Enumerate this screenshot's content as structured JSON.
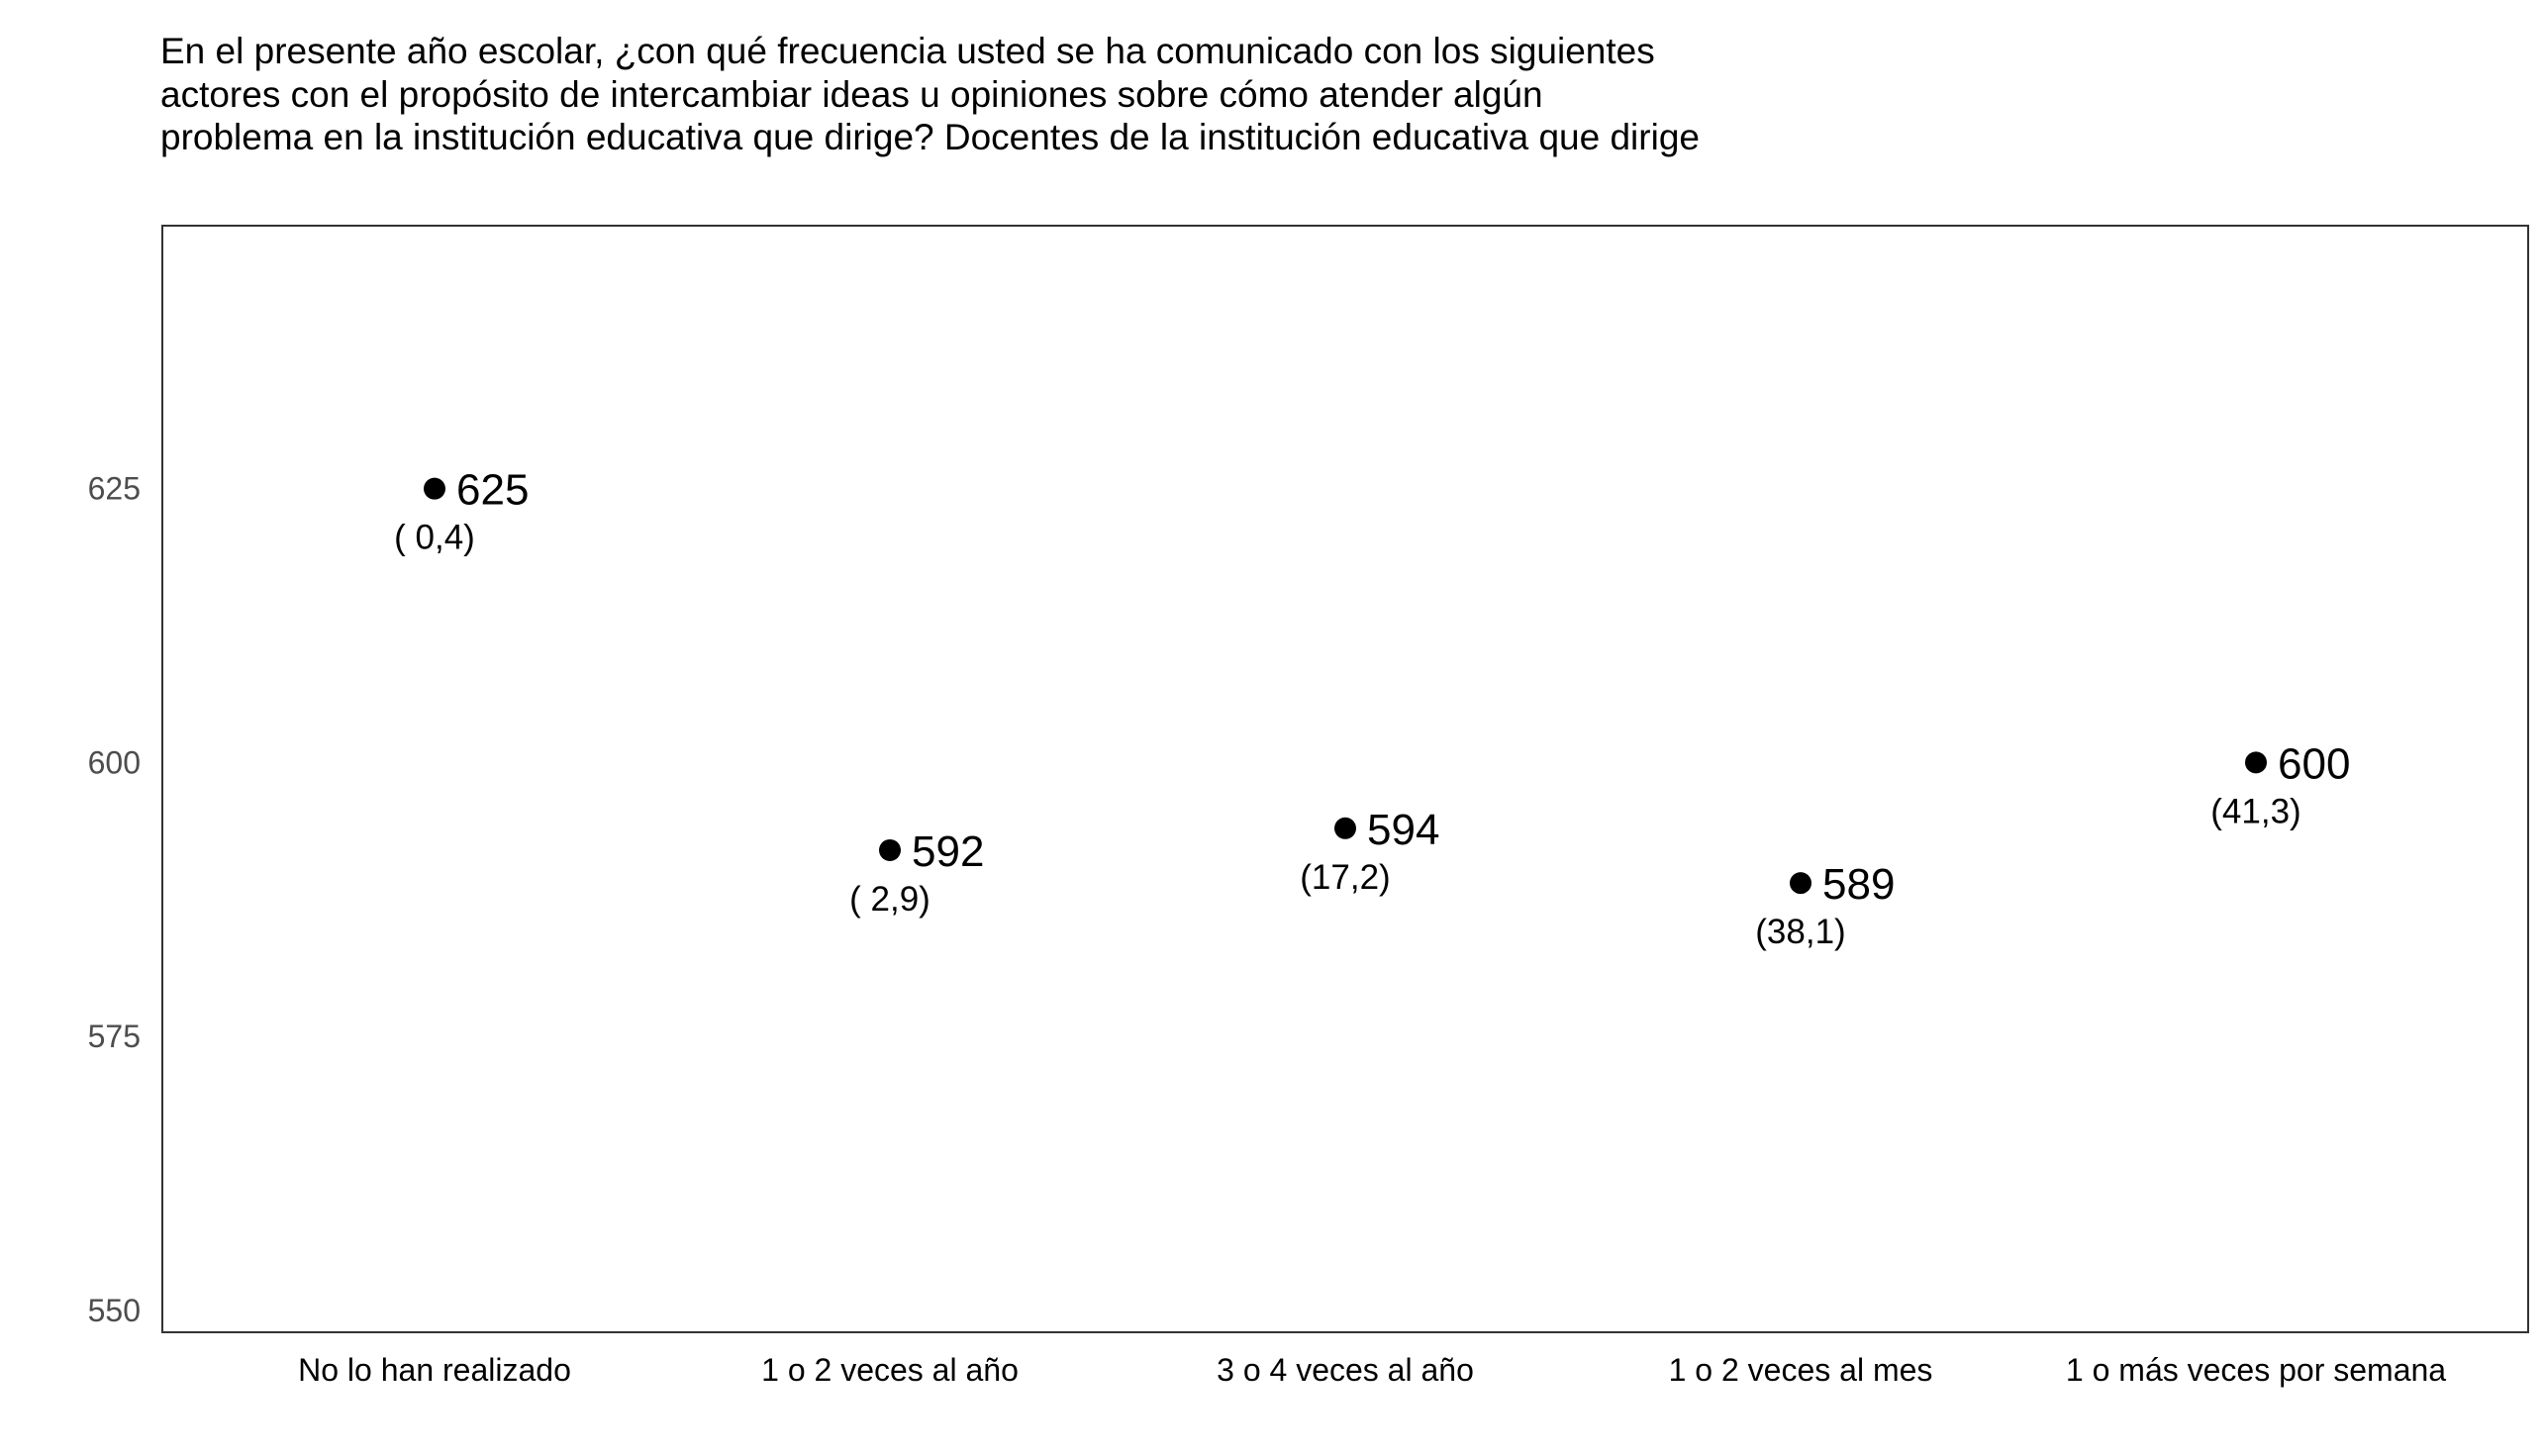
{
  "chart_data": {
    "type": "scatter",
    "title": "En el presente año escolar, ¿con qué frecuencia usted se ha comunicado con los siguientes actores con el propósito de intercambiar ideas u opiniones sobre cómo atender algún problema en la institución educativa que dirige? Docentes de la institución educativa que dirige",
    "categories": [
      "No lo han realizado",
      "1 o 2 veces al año",
      "3 o 4 veces al año",
      "1 o 2 veces al mes",
      "1 o más veces por semana"
    ],
    "values": [
      625,
      592,
      594,
      589,
      600
    ],
    "value_labels": [
      "625",
      "592",
      "594",
      "589",
      "600"
    ],
    "percent_labels": [
      "( 0,4)",
      "( 2,9)",
      "(17,2)",
      "(38,1)",
      "(41,3)"
    ],
    "y_ticks": [
      550,
      575,
      600,
      625
    ],
    "y_tick_labels": [
      "550",
      "575",
      "600",
      "625"
    ],
    "ylim": [
      548,
      649
    ],
    "xlabel": "",
    "ylabel": "",
    "grid": false,
    "point_color": "#000000"
  }
}
